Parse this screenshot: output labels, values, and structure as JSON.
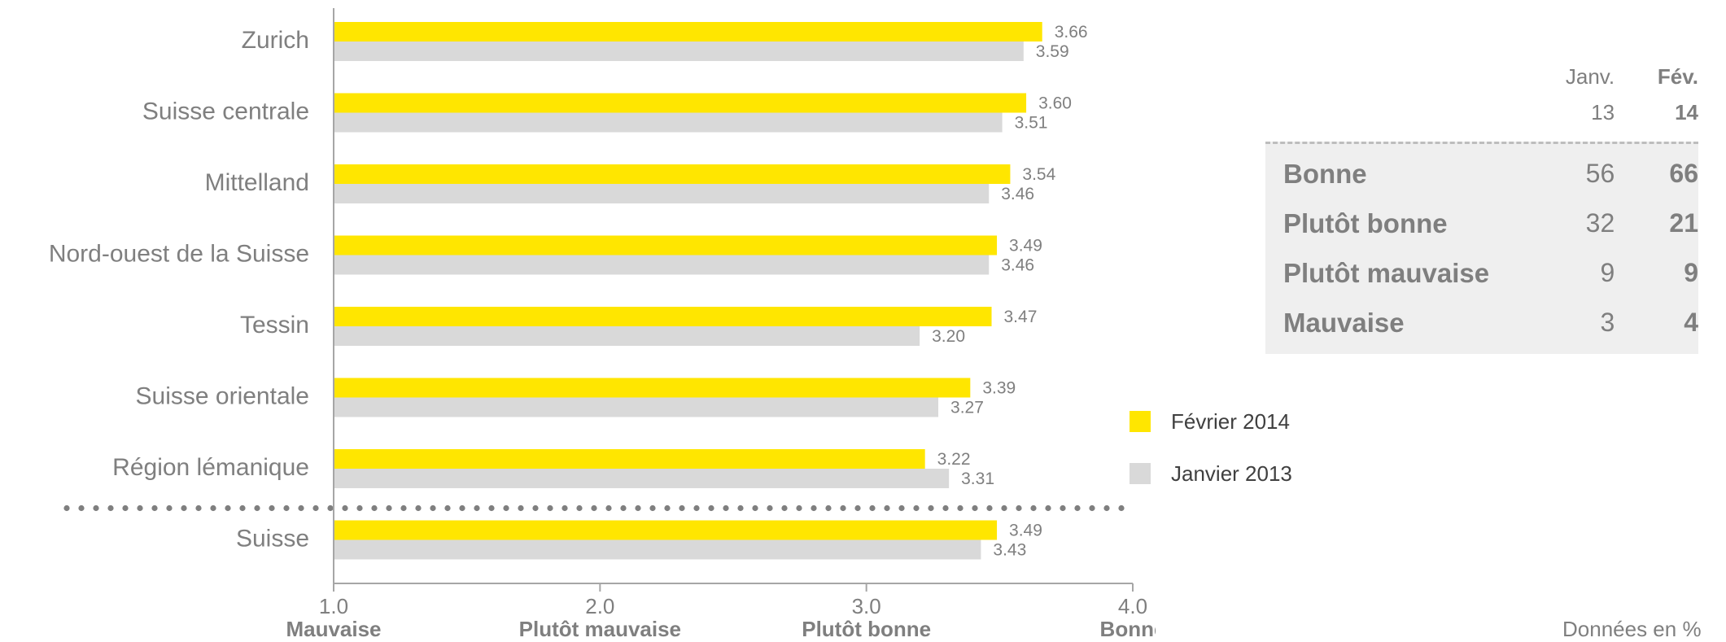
{
  "chart_data": {
    "type": "bar",
    "orientation": "horizontal",
    "categories": [
      "Zurich",
      "Suisse centrale",
      "Mittelland",
      "Nord-ouest de la Suisse",
      "Tessin",
      "Suisse orientale",
      "Région lémanique",
      "Suisse"
    ],
    "series": [
      {
        "name": "Février 2014",
        "color": "#ffe600",
        "values": [
          3.66,
          3.6,
          3.54,
          3.49,
          3.47,
          3.39,
          3.22,
          3.49
        ]
      },
      {
        "name": "Janvier 2013",
        "color": "#d9d9d9",
        "values": [
          3.59,
          3.51,
          3.46,
          3.46,
          3.2,
          3.27,
          3.31,
          3.43
        ]
      }
    ],
    "value_labels": [
      [
        "3.66",
        "3.60",
        "3.54",
        "3.49",
        "3.47",
        "3.39",
        "3.22",
        "3.49"
      ],
      [
        "3.59",
        "3.51",
        "3.46",
        "3.46",
        "3.20",
        "3.27",
        "3.31",
        "3.43"
      ]
    ],
    "xlim": [
      1.0,
      4.0
    ],
    "xticks": [
      {
        "value": 1.0,
        "label": "1.0",
        "word": "Mauvaise"
      },
      {
        "value": 2.0,
        "label": "2.0",
        "word": "Plutôt mauvaise"
      },
      {
        "value": 3.0,
        "label": "3.0",
        "word": "Plutôt bonne"
      },
      {
        "value": 4.0,
        "label": "4.0",
        "word": "Bonne"
      }
    ],
    "separator_before_last": true,
    "legend_placement": "right-middle",
    "grid": false
  },
  "summary_table": {
    "headers": [
      "Janv.",
      "Fév."
    ],
    "counts": [
      "13",
      "14"
    ],
    "rows": [
      {
        "label": "Bonne",
        "v1": "56",
        "v2": "66"
      },
      {
        "label": "Plutôt bonne",
        "v1": "32",
        "v2": "21"
      },
      {
        "label": "Plutôt mauvaise",
        "v1": "9",
        "v2": "9"
      },
      {
        "label": "Mauvaise",
        "v1": "3",
        "v2": "4"
      }
    ]
  },
  "legend": [
    {
      "label": "Février 2014",
      "color": "#ffe600"
    },
    {
      "label": "Janvier 2013",
      "color": "#d9d9d9"
    }
  ],
  "footnote": "Données en %"
}
